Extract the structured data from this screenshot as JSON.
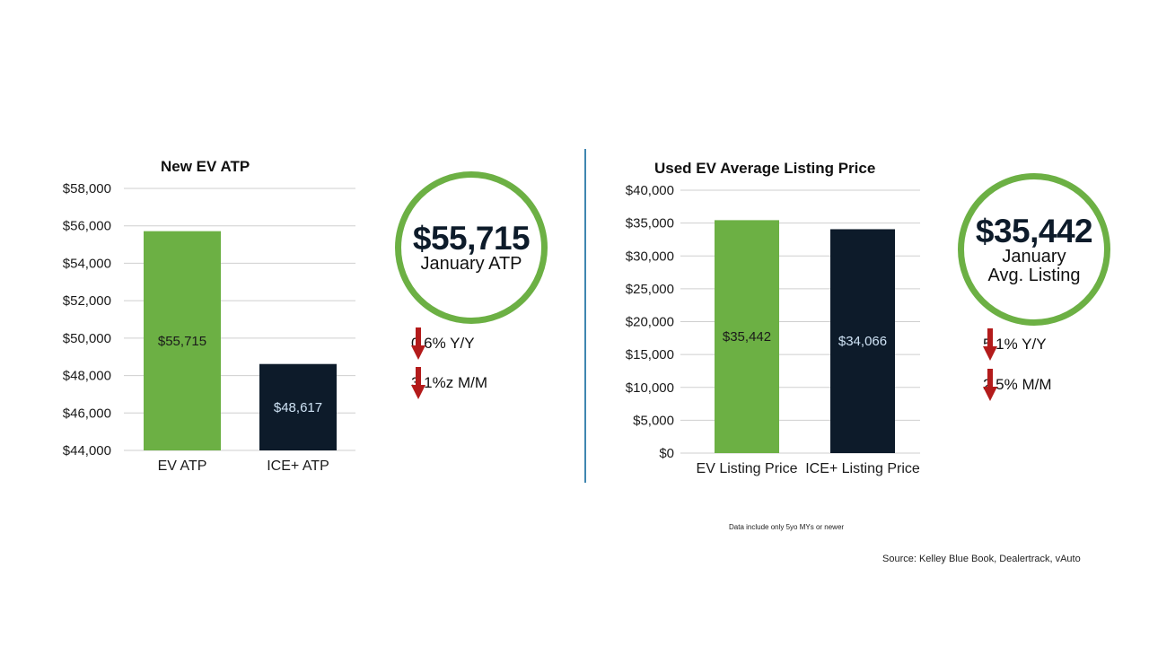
{
  "chart_data": [
    {
      "type": "bar",
      "title": "New EV ATP",
      "categories": [
        "EV ATP",
        "ICE+ ATP"
      ],
      "values": [
        55715,
        48617
      ],
      "value_labels": [
        "$55,715",
        "$48,617"
      ],
      "bar_colors": [
        "#6cb044",
        "#0d1b2a"
      ],
      "label_colors": [
        "#1a1a1a",
        "#cfe3f5"
      ],
      "ylim": [
        44000,
        58000
      ],
      "yticks": [
        44000,
        46000,
        48000,
        50000,
        52000,
        54000,
        56000,
        58000
      ],
      "ytick_labels": [
        "$44,000",
        "$46,000",
        "$48,000",
        "$50,000",
        "$52,000",
        "$54,000",
        "$56,000",
        "$58,000"
      ],
      "grid": true
    },
    {
      "type": "bar",
      "title": "Used EV Average Listing Price",
      "categories": [
        "EV Listing Price",
        "ICE+ Listing Price"
      ],
      "values": [
        35442,
        34066
      ],
      "value_labels": [
        "$35,442",
        "$34,066"
      ],
      "bar_colors": [
        "#6cb044",
        "#0d1b2a"
      ],
      "label_colors": [
        "#1a1a1a",
        "#cfe3f5"
      ],
      "ylim": [
        0,
        40000
      ],
      "yticks": [
        0,
        5000,
        10000,
        15000,
        20000,
        25000,
        30000,
        35000,
        40000
      ],
      "ytick_labels": [
        "$0",
        "$5,000",
        "$10,000",
        "$15,000",
        "$20,000",
        "$25,000",
        "$30,000",
        "$35,000",
        "$40,000"
      ],
      "grid": true
    }
  ],
  "kpis": [
    {
      "value": "$55,715",
      "label_lines": [
        "January ATP"
      ],
      "changes": [
        "0.6% Y/Y",
        "3.1%z M/M"
      ],
      "direction": "down"
    },
    {
      "value": "$35,442",
      "label_lines": [
        "January",
        "Avg. Listing"
      ],
      "changes": [
        "5.1% Y/Y",
        "2.5% M/M"
      ],
      "direction": "down"
    }
  ],
  "colors": {
    "accent_green": "#6cb044",
    "dark_navy": "#0d1b2a",
    "arrow_red": "#b31b1b",
    "divider_blue": "#3f86b0"
  },
  "footnote": "Data include only 5yo MYs or newer",
  "source": "Source: Kelley Blue Book, Dealertrack, vAuto"
}
